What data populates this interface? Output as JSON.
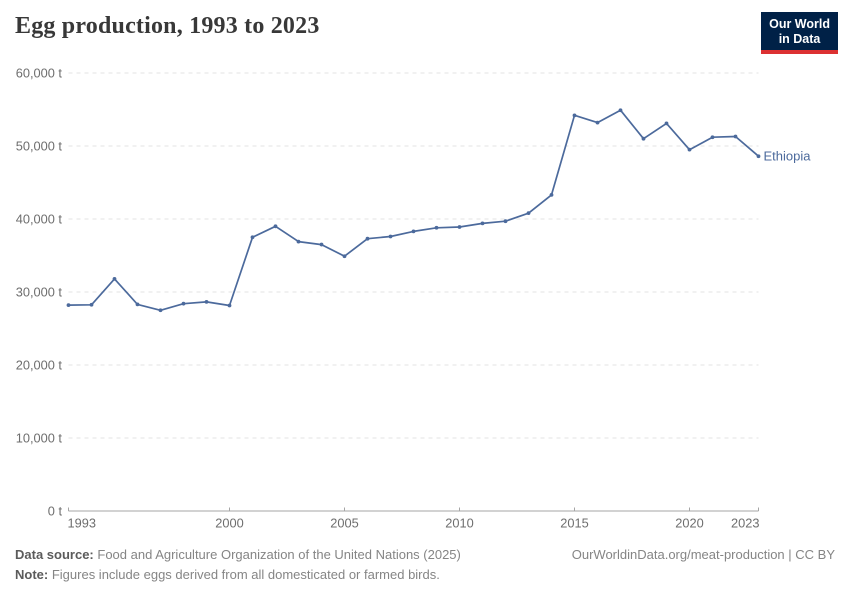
{
  "header": {
    "title": "Egg production, 1993 to 2023"
  },
  "logo": {
    "line1": "Our World",
    "line2": "in Data",
    "bg_color": "#002147",
    "accent_color": "#DC3132"
  },
  "chart_data": {
    "type": "line",
    "title": "Egg production, 1993 to 2023",
    "unit": "t",
    "xlabel": "",
    "ylabel": "",
    "ylim": [
      0,
      60000
    ],
    "grid": "horizontal-dashed",
    "legend_position": "end-of-line-label",
    "x": [
      1993,
      1994,
      1995,
      1996,
      1997,
      1998,
      1999,
      2000,
      2001,
      2002,
      2003,
      2004,
      2005,
      2006,
      2007,
      2008,
      2009,
      2010,
      2011,
      2012,
      2013,
      2014,
      2015,
      2016,
      2017,
      2018,
      2019,
      2020,
      2021,
      2022,
      2023
    ],
    "series": [
      {
        "name": "Ethiopia",
        "color": "#4C6A9C",
        "values": [
          28200,
          28250,
          31800,
          28300,
          27500,
          28400,
          28650,
          28150,
          37500,
          39000,
          36900,
          36500,
          34900,
          37300,
          37600,
          38300,
          38800,
          38900,
          39400,
          39700,
          40800,
          43300,
          54200,
          53200,
          54900,
          51000,
          53100,
          49500,
          51200,
          51300,
          48600
        ]
      }
    ],
    "yticks": [
      {
        "value": 0,
        "label": "0 t"
      },
      {
        "value": 10000,
        "label": "10,000 t"
      },
      {
        "value": 20000,
        "label": "20,000 t"
      },
      {
        "value": 30000,
        "label": "30,000 t"
      },
      {
        "value": 40000,
        "label": "40,000 t"
      },
      {
        "value": 50000,
        "label": "50,000 t"
      },
      {
        "value": 60000,
        "label": "60,000 t"
      }
    ],
    "xticks": [
      {
        "value": 1993,
        "label": "1993"
      },
      {
        "value": 2000,
        "label": "2000"
      },
      {
        "value": 2005,
        "label": "2005"
      },
      {
        "value": 2010,
        "label": "2010"
      },
      {
        "value": 2015,
        "label": "2015"
      },
      {
        "value": 2020,
        "label": "2020"
      },
      {
        "value": 2023,
        "label": "2023"
      }
    ]
  },
  "footer": {
    "datasource_label": "Data source:",
    "datasource_text": "Food and Agriculture Organization of the United Nations (2025)",
    "note_label": "Note:",
    "note_text": "Figures include eggs derived from all domesticated or farmed birds.",
    "credit": "OurWorldinData.org/meat-production | CC BY"
  }
}
